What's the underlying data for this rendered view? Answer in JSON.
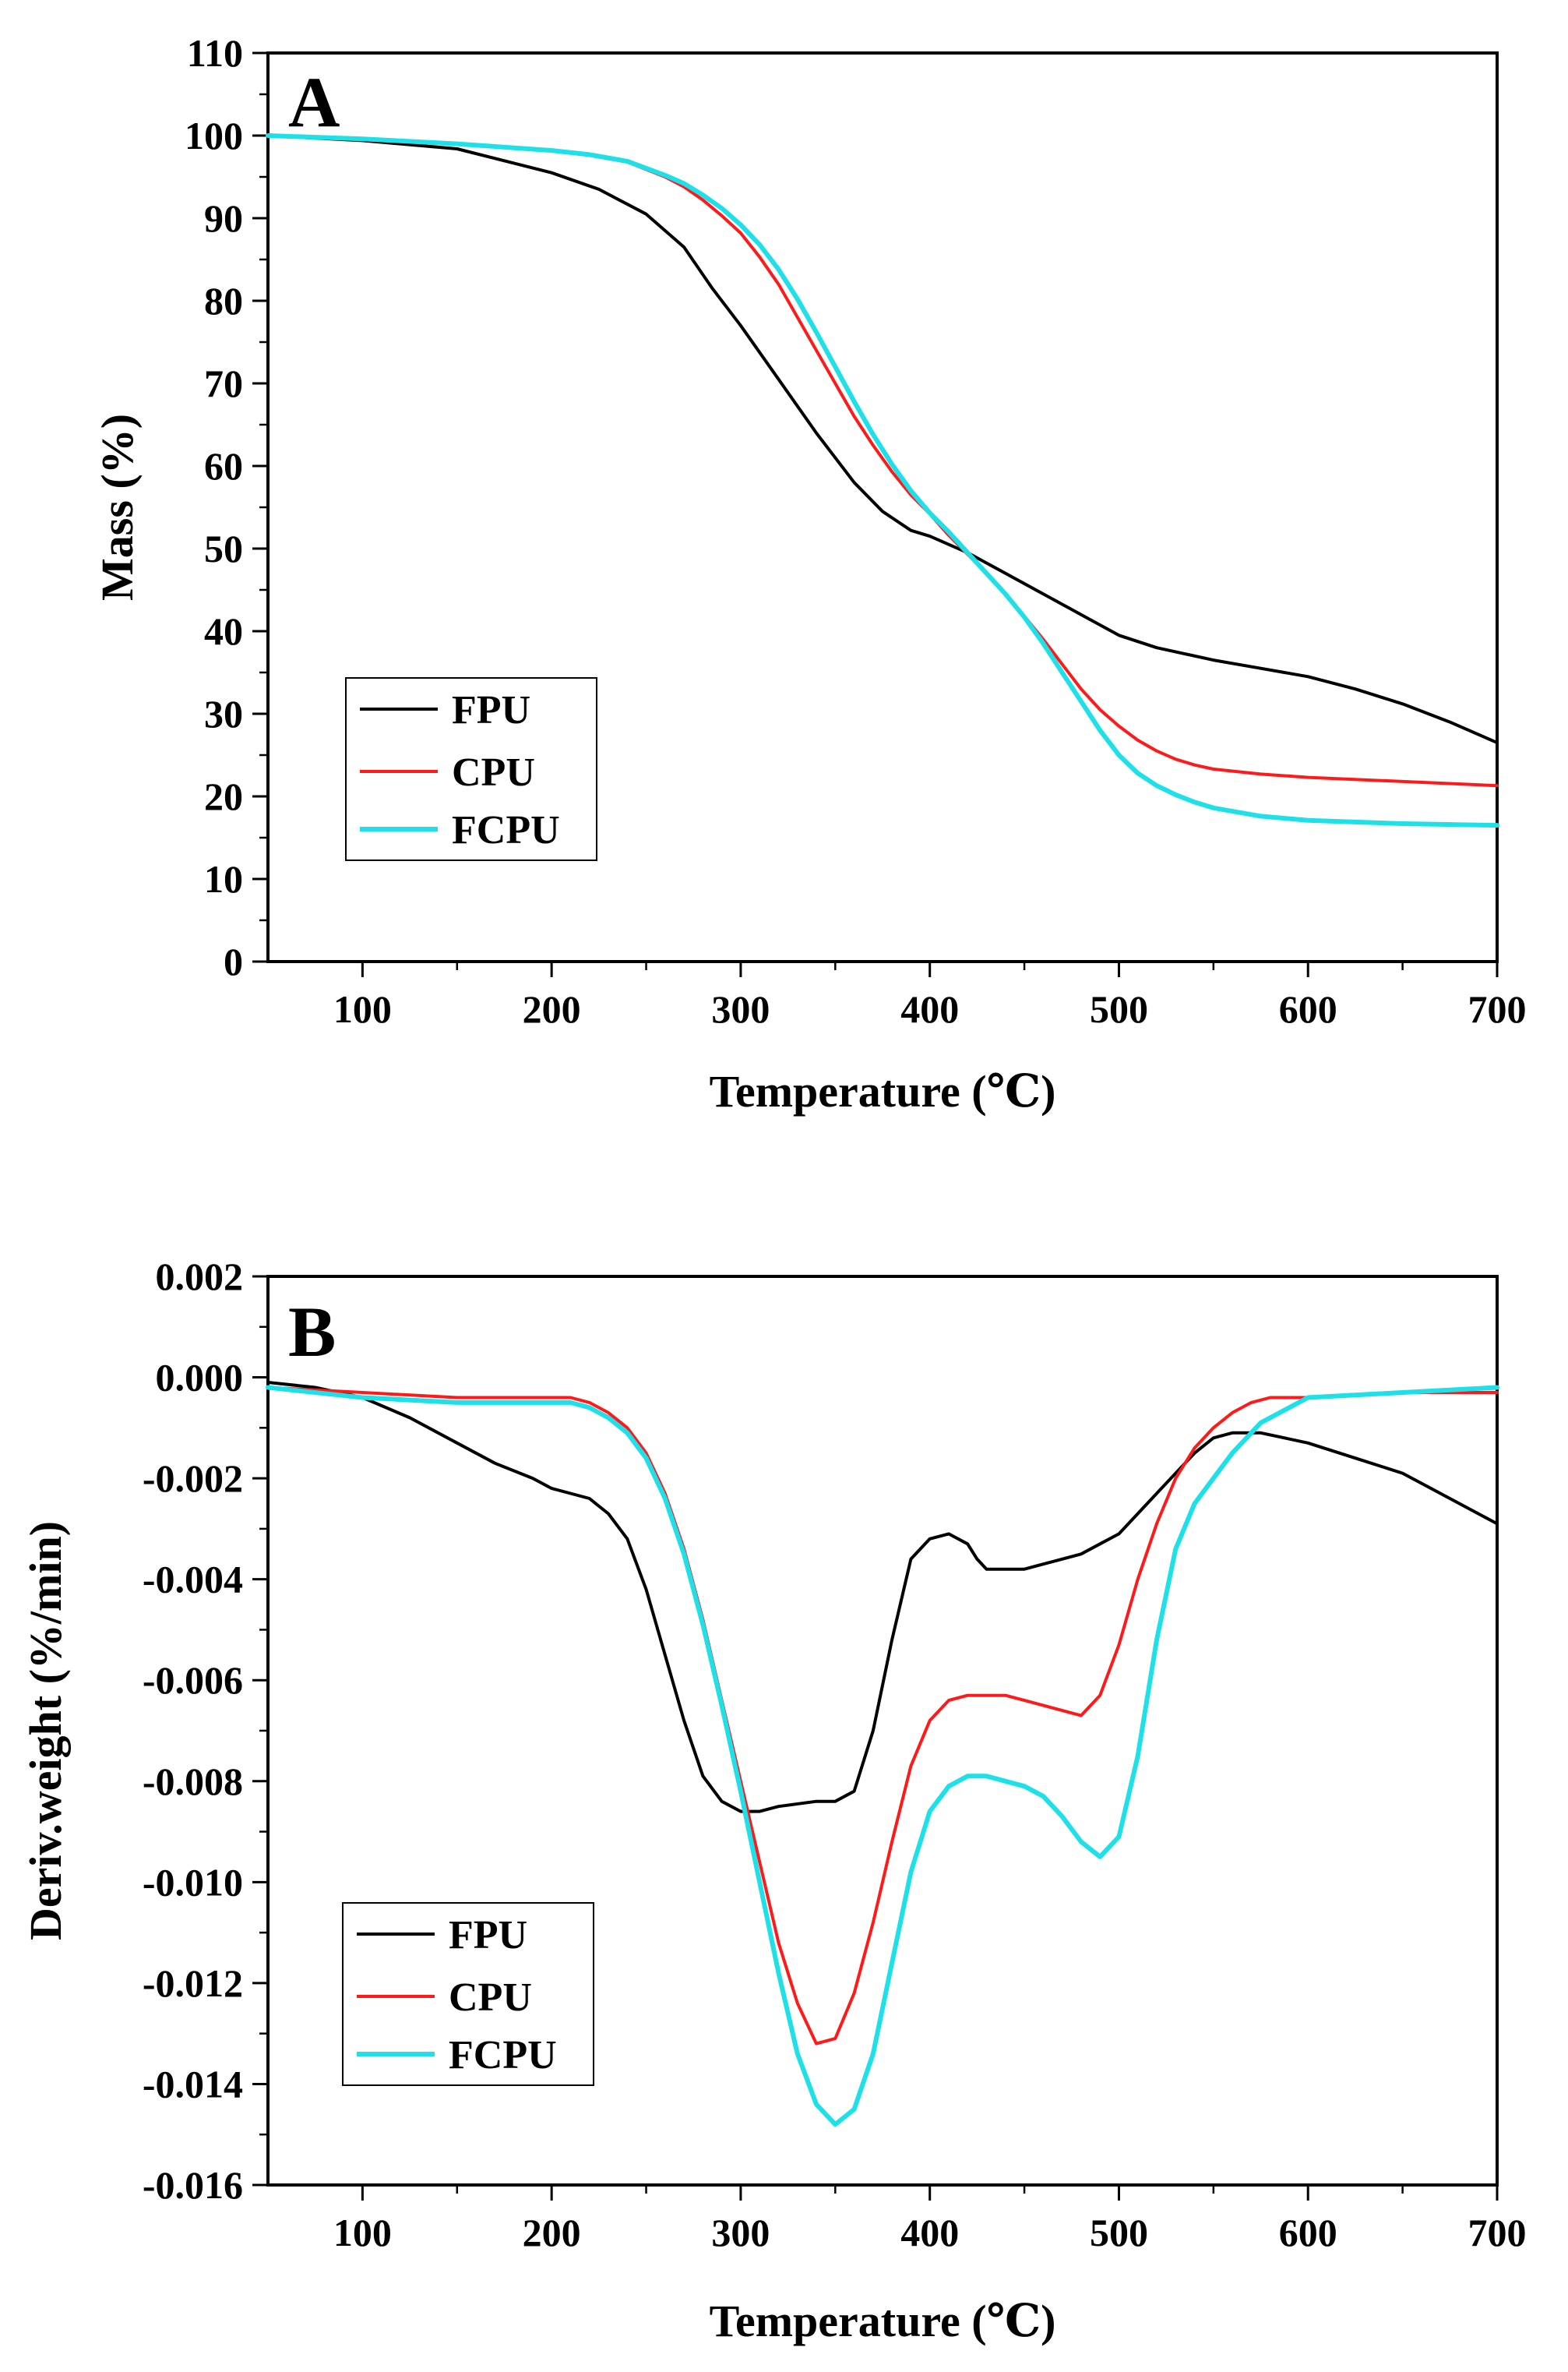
{
  "chart_data": [
    {
      "type": "line",
      "panel_label": "A",
      "xlabel": "Temperature (℃)",
      "ylabel": "Mass (%)",
      "xlim": [
        50,
        700
      ],
      "ylim": [
        0,
        110
      ],
      "xticks": [
        100,
        200,
        300,
        400,
        500,
        600,
        700
      ],
      "yticks": [
        0,
        10,
        20,
        30,
        40,
        50,
        60,
        70,
        80,
        90,
        100,
        110
      ],
      "xtick_labels": [
        "100",
        "200",
        "300",
        "400",
        "500",
        "600",
        "700"
      ],
      "ytick_labels": [
        "0",
        "10",
        "20",
        "30",
        "40",
        "50",
        "60",
        "70",
        "80",
        "90",
        "100",
        "110"
      ],
      "legend_position": "lower-left",
      "series": [
        {
          "name": "FPU",
          "color": "#000000",
          "x": [
            50,
            100,
            150,
            200,
            225,
            250,
            270,
            285,
            300,
            320,
            340,
            360,
            375,
            390,
            400,
            420,
            440,
            460,
            480,
            500,
            520,
            550,
            575,
            600,
            625,
            650,
            675,
            700
          ],
          "y": [
            100,
            99.4,
            98.4,
            95.5,
            93.5,
            90.5,
            86.5,
            81.5,
            77,
            70.5,
            64,
            58,
            54.5,
            52.2,
            51.5,
            49.5,
            47,
            44.5,
            42,
            39.5,
            38,
            36.5,
            35.5,
            34.5,
            33,
            31.2,
            29,
            26.5
          ]
        },
        {
          "name": "CPU",
          "color": "#ff1a1a",
          "x": [
            50,
            100,
            150,
            200,
            220,
            240,
            260,
            270,
            280,
            290,
            300,
            310,
            320,
            330,
            340,
            350,
            360,
            370,
            380,
            390,
            400,
            410,
            420,
            430,
            440,
            450,
            460,
            470,
            480,
            490,
            500,
            510,
            520,
            530,
            540,
            550,
            575,
            600,
            650,
            700
          ],
          "y": [
            100,
            99.5,
            99,
            98.2,
            97.6,
            96.8,
            95,
            93.8,
            92.2,
            90.3,
            88.2,
            85.3,
            82,
            78,
            74,
            70,
            66,
            62.5,
            59.3,
            56.5,
            54.2,
            51.6,
            49.3,
            47,
            44.5,
            41.8,
            39,
            36,
            33,
            30.5,
            28.5,
            26.8,
            25.5,
            24.5,
            23.8,
            23.3,
            22.7,
            22.3,
            21.8,
            21.3
          ]
        },
        {
          "name": "FCPU",
          "color": "#1de0e8",
          "x": [
            50,
            100,
            150,
            200,
            220,
            240,
            260,
            270,
            280,
            290,
            300,
            310,
            320,
            330,
            340,
            350,
            360,
            370,
            380,
            390,
            400,
            410,
            420,
            430,
            440,
            450,
            460,
            470,
            480,
            490,
            500,
            510,
            520,
            530,
            540,
            550,
            575,
            600,
            650,
            700
          ],
          "y": [
            100,
            99.6,
            99,
            98.2,
            97.7,
            96.9,
            95.2,
            94.2,
            92.8,
            91.2,
            89.2,
            86.8,
            83.8,
            80.2,
            76.2,
            72,
            67.8,
            63.8,
            60.2,
            57,
            54.3,
            52,
            49.5,
            47,
            44.5,
            41.7,
            38.5,
            35,
            31.5,
            28,
            25,
            22.8,
            21.3,
            20.2,
            19.3,
            18.6,
            17.6,
            17.1,
            16.7,
            16.5
          ]
        }
      ]
    },
    {
      "type": "line",
      "panel_label": "B",
      "xlabel": "Temperature (℃)",
      "ylabel": "Deriv.weight (%/min)",
      "xlim": [
        50,
        700
      ],
      "ylim": [
        -0.016,
        0.002
      ],
      "xticks": [
        100,
        200,
        300,
        400,
        500,
        600,
        700
      ],
      "yticks": [
        0.002,
        0.0,
        -0.002,
        -0.004,
        -0.006,
        -0.008,
        -0.01,
        -0.012,
        -0.014,
        -0.016
      ],
      "xtick_labels": [
        "100",
        "200",
        "300",
        "400",
        "500",
        "600",
        "700"
      ],
      "ytick_labels": [
        "0.002",
        "0.000",
        "-0.002",
        "-0.004",
        "-0.006",
        "-0.008",
        "-0.010",
        "-0.012",
        "-0.014",
        "-0.016"
      ],
      "legend_position": "lower-left",
      "series": [
        {
          "name": "FPU",
          "color": "#000000",
          "x": [
            50,
            75,
            100,
            125,
            150,
            170,
            190,
            200,
            210,
            220,
            230,
            240,
            250,
            260,
            270,
            280,
            290,
            300,
            310,
            320,
            340,
            350,
            360,
            370,
            380,
            390,
            400,
            410,
            420,
            425,
            430,
            440,
            450,
            460,
            470,
            480,
            490,
            500,
            510,
            520,
            530,
            540,
            550,
            560,
            575,
            600,
            625,
            650,
            675,
            700
          ],
          "y": [
            -0.0001,
            -0.0002,
            -0.0004,
            -0.0008,
            -0.0013,
            -0.0017,
            -0.002,
            -0.0022,
            -0.0023,
            -0.0024,
            -0.0027,
            -0.0032,
            -0.0042,
            -0.0055,
            -0.0068,
            -0.0079,
            -0.0084,
            -0.0086,
            -0.0086,
            -0.0085,
            -0.0084,
            -0.0084,
            -0.0082,
            -0.007,
            -0.0052,
            -0.0036,
            -0.0032,
            -0.0031,
            -0.0033,
            -0.0036,
            -0.0038,
            -0.0038,
            -0.0038,
            -0.0037,
            -0.0036,
            -0.0035,
            -0.0033,
            -0.0031,
            -0.0027,
            -0.0023,
            -0.0019,
            -0.0015,
            -0.0012,
            -0.0011,
            -0.0011,
            -0.0013,
            -0.0016,
            -0.0019,
            -0.0024,
            -0.0029
          ]
        },
        {
          "name": "CPU",
          "color": "#ff1a1a",
          "x": [
            50,
            100,
            150,
            175,
            200,
            210,
            220,
            230,
            240,
            250,
            260,
            270,
            280,
            290,
            300,
            310,
            320,
            330,
            340,
            350,
            360,
            370,
            380,
            390,
            400,
            410,
            420,
            430,
            440,
            450,
            460,
            470,
            480,
            490,
            500,
            510,
            520,
            530,
            540,
            550,
            560,
            570,
            580,
            600,
            650,
            700
          ],
          "y": [
            -0.0002,
            -0.0003,
            -0.0004,
            -0.0004,
            -0.0004,
            -0.0004,
            -0.0005,
            -0.0007,
            -0.001,
            -0.0015,
            -0.0023,
            -0.0034,
            -0.0048,
            -0.0064,
            -0.008,
            -0.0096,
            -0.0112,
            -0.0124,
            -0.0132,
            -0.0131,
            -0.0122,
            -0.0108,
            -0.0092,
            -0.0077,
            -0.0068,
            -0.0064,
            -0.0063,
            -0.0063,
            -0.0063,
            -0.0064,
            -0.0065,
            -0.0066,
            -0.0067,
            -0.0063,
            -0.0053,
            -0.004,
            -0.0029,
            -0.002,
            -0.0014,
            -0.001,
            -0.0007,
            -0.0005,
            -0.0004,
            -0.0004,
            -0.0003,
            -0.0003
          ]
        },
        {
          "name": "FCPU",
          "color": "#1de0e8",
          "x": [
            50,
            100,
            150,
            175,
            200,
            210,
            220,
            230,
            240,
            250,
            260,
            270,
            280,
            290,
            300,
            310,
            320,
            330,
            340,
            350,
            360,
            370,
            380,
            390,
            400,
            410,
            420,
            430,
            440,
            450,
            460,
            470,
            480,
            490,
            500,
            510,
            520,
            530,
            540,
            550,
            560,
            575,
            600,
            650,
            700
          ],
          "y": [
            -0.0002,
            -0.0004,
            -0.0005,
            -0.0005,
            -0.0005,
            -0.0005,
            -0.0006,
            -0.0008,
            -0.0011,
            -0.0016,
            -0.0024,
            -0.0035,
            -0.0049,
            -0.0065,
            -0.0082,
            -0.01,
            -0.0118,
            -0.0134,
            -0.0144,
            -0.0148,
            -0.0145,
            -0.0134,
            -0.0116,
            -0.0098,
            -0.0086,
            -0.0081,
            -0.0079,
            -0.0079,
            -0.008,
            -0.0081,
            -0.0083,
            -0.0087,
            -0.0092,
            -0.0095,
            -0.0091,
            -0.0075,
            -0.0052,
            -0.0034,
            -0.0025,
            -0.002,
            -0.0015,
            -0.0009,
            -0.0004,
            -0.0003,
            -0.0002
          ]
        }
      ]
    }
  ]
}
